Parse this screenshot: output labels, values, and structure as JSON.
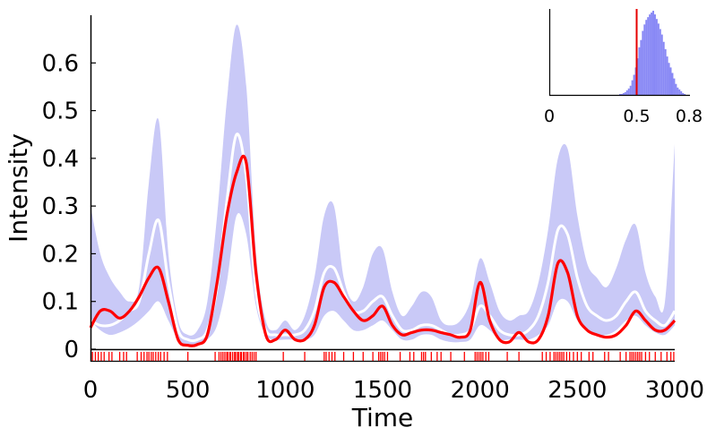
{
  "chart_data": {
    "type": "line",
    "xlabel": "Time",
    "ylabel": "Intensity",
    "xlim": [
      0,
      3000
    ],
    "ylim": [
      0,
      0.7
    ],
    "x_ticks": [
      0,
      500,
      1000,
      1500,
      2000,
      2500,
      3000
    ],
    "x_tick_labels": [
      "0",
      "500",
      "1000",
      "1500",
      "2000",
      "2500",
      "3000"
    ],
    "y_ticks": [
      0,
      0.1,
      0.2,
      0.3,
      0.4,
      0.5,
      0.6
    ],
    "y_tick_labels": [
      "0",
      "0.1",
      "0.2",
      "0.3",
      "0.4",
      "0.5",
      "0.6"
    ],
    "grid": false,
    "colors": {
      "band": "#c9c9f7",
      "posterior_mean": "#ffffff",
      "estimate": "#ff0000",
      "events": "#ff0000",
      "inset_hist": "#8888f5",
      "inset_marker": "#e60000"
    },
    "x": [
      0,
      50,
      100,
      150,
      200,
      250,
      300,
      350,
      400,
      450,
      500,
      550,
      600,
      650,
      700,
      750,
      800,
      850,
      900,
      950,
      1000,
      1050,
      1100,
      1150,
      1200,
      1250,
      1300,
      1350,
      1400,
      1450,
      1500,
      1550,
      1600,
      1650,
      1700,
      1750,
      1800,
      1850,
      1900,
      1950,
      2000,
      2050,
      2100,
      2150,
      2200,
      2250,
      2300,
      2350,
      2400,
      2450,
      2500,
      2550,
      2600,
      2650,
      2700,
      2750,
      2800,
      2850,
      2900,
      2950,
      3000
    ],
    "series": [
      {
        "role": "band",
        "upper": [
          0.3,
          0.2,
          0.15,
          0.12,
          0.1,
          0.13,
          0.35,
          0.48,
          0.2,
          0.06,
          0.03,
          0.04,
          0.1,
          0.28,
          0.52,
          0.68,
          0.55,
          0.2,
          0.06,
          0.04,
          0.06,
          0.04,
          0.07,
          0.15,
          0.28,
          0.3,
          0.15,
          0.1,
          0.13,
          0.2,
          0.21,
          0.12,
          0.07,
          0.09,
          0.12,
          0.11,
          0.06,
          0.05,
          0.06,
          0.1,
          0.19,
          0.14,
          0.08,
          0.06,
          0.07,
          0.08,
          0.14,
          0.25,
          0.4,
          0.42,
          0.28,
          0.18,
          0.15,
          0.13,
          0.17,
          0.23,
          0.26,
          0.16,
          0.11,
          0.1,
          0.43
        ],
        "lower": [
          0.06,
          0.04,
          0.03,
          0.035,
          0.045,
          0.06,
          0.08,
          0.1,
          0.06,
          0.02,
          0.01,
          0.01,
          0.02,
          0.05,
          0.14,
          0.28,
          0.24,
          0.09,
          0.03,
          0.02,
          0.02,
          0.02,
          0.02,
          0.03,
          0.07,
          0.08,
          0.06,
          0.04,
          0.04,
          0.05,
          0.06,
          0.04,
          0.02,
          0.02,
          0.03,
          0.03,
          0.02,
          0.015,
          0.015,
          0.02,
          0.05,
          0.04,
          0.02,
          0.02,
          0.02,
          0.02,
          0.03,
          0.05,
          0.1,
          0.1,
          0.06,
          0.04,
          0.03,
          0.03,
          0.04,
          0.06,
          0.07,
          0.05,
          0.035,
          0.03,
          0.05
        ]
      },
      {
        "role": "posterior_mean",
        "values": [
          0.06,
          0.05,
          0.05,
          0.06,
          0.08,
          0.1,
          0.2,
          0.27,
          0.14,
          0.04,
          0.02,
          0.02,
          0.04,
          0.13,
          0.31,
          0.45,
          0.36,
          0.12,
          0.04,
          0.03,
          0.03,
          0.03,
          0.04,
          0.08,
          0.16,
          0.17,
          0.12,
          0.08,
          0.08,
          0.1,
          0.11,
          0.07,
          0.04,
          0.04,
          0.05,
          0.05,
          0.04,
          0.03,
          0.03,
          0.04,
          0.09,
          0.07,
          0.04,
          0.03,
          0.03,
          0.04,
          0.07,
          0.14,
          0.25,
          0.24,
          0.15,
          0.09,
          0.07,
          0.06,
          0.07,
          0.1,
          0.12,
          0.08,
          0.06,
          0.05,
          0.08
        ]
      },
      {
        "role": "estimate",
        "values": [
          0.045,
          0.08,
          0.08,
          0.065,
          0.08,
          0.11,
          0.15,
          0.17,
          0.1,
          0.02,
          0.008,
          0.01,
          0.03,
          0.14,
          0.28,
          0.37,
          0.39,
          0.16,
          0.03,
          0.02,
          0.04,
          0.02,
          0.02,
          0.05,
          0.13,
          0.14,
          0.11,
          0.08,
          0.06,
          0.07,
          0.09,
          0.05,
          0.03,
          0.035,
          0.04,
          0.04,
          0.035,
          0.03,
          0.025,
          0.04,
          0.14,
          0.06,
          0.02,
          0.015,
          0.035,
          0.015,
          0.02,
          0.07,
          0.18,
          0.16,
          0.07,
          0.04,
          0.03,
          0.025,
          0.03,
          0.05,
          0.08,
          0.06,
          0.04,
          0.04,
          0.06
        ]
      }
    ],
    "events": [
      10,
      25,
      40,
      55,
      70,
      95,
      110,
      150,
      170,
      185,
      240,
      260,
      275,
      290,
      300,
      312,
      322,
      335,
      348,
      360,
      378,
      395,
      500,
      640,
      660,
      670,
      680,
      690,
      700,
      705,
      715,
      720,
      730,
      740,
      745,
      755,
      760,
      770,
      775,
      785,
      790,
      800,
      808,
      820,
      830,
      840,
      850,
      990,
      1100,
      1200,
      1210,
      1225,
      1240,
      1255,
      1300,
      1350,
      1400,
      1450,
      1480,
      1490,
      1500,
      1510,
      1525,
      1590,
      1640,
      1660,
      1700,
      1710,
      1720,
      1750,
      1780,
      1800,
      1850,
      1920,
      1975,
      1985,
      1995,
      2005,
      2015,
      2030,
      2045,
      2140,
      2200,
      2320,
      2340,
      2360,
      2380,
      2390,
      2400,
      2410,
      2420,
      2430,
      2445,
      2460,
      2480,
      2500,
      2520,
      2560,
      2580,
      2640,
      2660,
      2720,
      2750,
      2770,
      2780,
      2790,
      2800,
      2810,
      2820,
      2830,
      2850,
      2870,
      2900,
      2930,
      2960,
      2980,
      2995
    ],
    "inset": {
      "type": "histogram",
      "xlim": [
        0,
        0.8
      ],
      "x_ticks": [
        0,
        0.5,
        0.8
      ],
      "x_tick_labels": [
        "0",
        "0.5",
        "0.8"
      ],
      "marker": 0.5,
      "bin_width": 0.01,
      "bin_start": 0.4,
      "counts": [
        1,
        1,
        2,
        3,
        5,
        7,
        10,
        16,
        22,
        30,
        40,
        52,
        60,
        70,
        77,
        82,
        85,
        88,
        90,
        92,
        88,
        83,
        78,
        72,
        66,
        58,
        50,
        42,
        35,
        30,
        24,
        18,
        12,
        8,
        6,
        4,
        2,
        1
      ]
    }
  }
}
